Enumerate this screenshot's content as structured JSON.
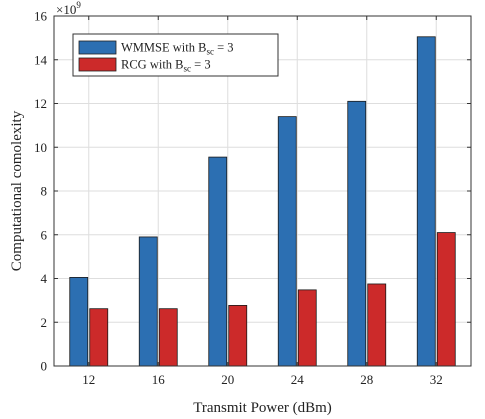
{
  "chart_data": {
    "type": "bar",
    "title": "",
    "xlabel": "Transmit Power (dBm)",
    "ylabel": "Computational comolexity",
    "y_multiplier_label": "×10",
    "y_multiplier_exponent": "9",
    "categories": [
      "12",
      "16",
      "20",
      "24",
      "28",
      "32"
    ],
    "series": [
      {
        "name": "WMMSE with B",
        "name_subscript": "sc",
        "name_suffix": " = 3",
        "values": [
          4.05,
          5.9,
          9.55,
          11.4,
          12.1,
          15.05
        ],
        "color": "#2c6fb2"
      },
      {
        "name": "RCG with B",
        "name_subscript": "sc",
        "name_suffix": " = 3",
        "values": [
          2.62,
          2.62,
          2.77,
          3.48,
          3.75,
          6.1
        ],
        "color": "#cc2a2a"
      }
    ],
    "yticks": [
      "0",
      "2",
      "4",
      "6",
      "8",
      "10",
      "12",
      "14",
      "16"
    ],
    "ylim": [
      0,
      16
    ],
    "grid": true,
    "legend_position": "top-left"
  }
}
